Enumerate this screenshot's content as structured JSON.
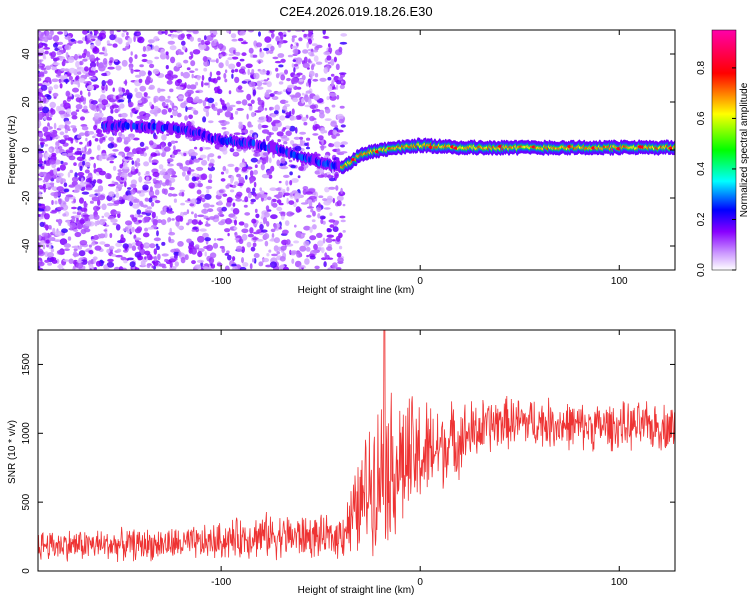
{
  "figure": {
    "title": "C2E4.2026.019.18.26.E30"
  },
  "chart_data": [
    {
      "type": "heatmap",
      "title": "C2E4.2026.019.18.26.E30",
      "xlabel": "Height of straight line (km)",
      "ylabel": "Frequency (Hz)",
      "xlim": [
        -192,
        128
      ],
      "ylim": [
        -50,
        50
      ],
      "xticks": [
        -100,
        0,
        100
      ],
      "yticks": [
        -40,
        -20,
        0,
        20,
        40
      ],
      "colorbar": {
        "label": "Normalized spectral amplitude",
        "range": [
          0.0,
          0.95
        ],
        "ticks": [
          0.0,
          0.2,
          0.4,
          0.6,
          0.8
        ],
        "colormap": [
          "#ffffff",
          "#8800ff",
          "#0000ff",
          "#00ffff",
          "#00ff00",
          "#ffff00",
          "#ff0000",
          "#ff00aa"
        ]
      },
      "ridge": {
        "description": "dominant frequency trace",
        "height_km": [
          -150,
          -120,
          -100,
          -85,
          -70,
          -55,
          -45,
          -38,
          -30,
          -20,
          -10,
          0,
          20,
          40,
          60,
          80,
          100,
          128
        ],
        "frequency_hz": [
          10,
          9,
          4,
          3,
          0,
          -4,
          -6,
          -7,
          -2,
          0,
          1,
          2,
          1,
          1,
          1,
          1,
          1,
          1
        ],
        "strong_signal_start_km": -40
      }
    },
    {
      "type": "line",
      "xlabel": "Height of straight line (km)",
      "ylabel": "SNR (10 * v/v)",
      "xlim": [
        -192,
        128
      ],
      "ylim": [
        0,
        1750
      ],
      "xticks": [
        -100,
        0,
        100
      ],
      "yticks": [
        0,
        500,
        1000,
        1500
      ],
      "series": [
        {
          "name": "SNR",
          "color": "#ee3333",
          "trend": {
            "x": [
              -192,
              -150,
              -110,
              -80,
              -60,
              -42,
              -32,
              -25,
              -18,
              -10,
              0,
              10,
              25,
              40,
              60,
              80,
              100,
              128
            ],
            "y": [
              190,
              190,
              200,
              260,
              250,
              240,
              420,
              650,
              750,
              780,
              830,
              900,
              1000,
              1080,
              1080,
              1050,
              1050,
              1050
            ]
          },
          "spread": [
            120,
            120,
            130,
            170,
            170,
            150,
            350,
            500,
            600,
            550,
            450,
            330,
            250,
            200,
            190,
            180,
            180,
            180
          ],
          "peak": {
            "x": -18,
            "y": 1750
          }
        }
      ]
    }
  ]
}
